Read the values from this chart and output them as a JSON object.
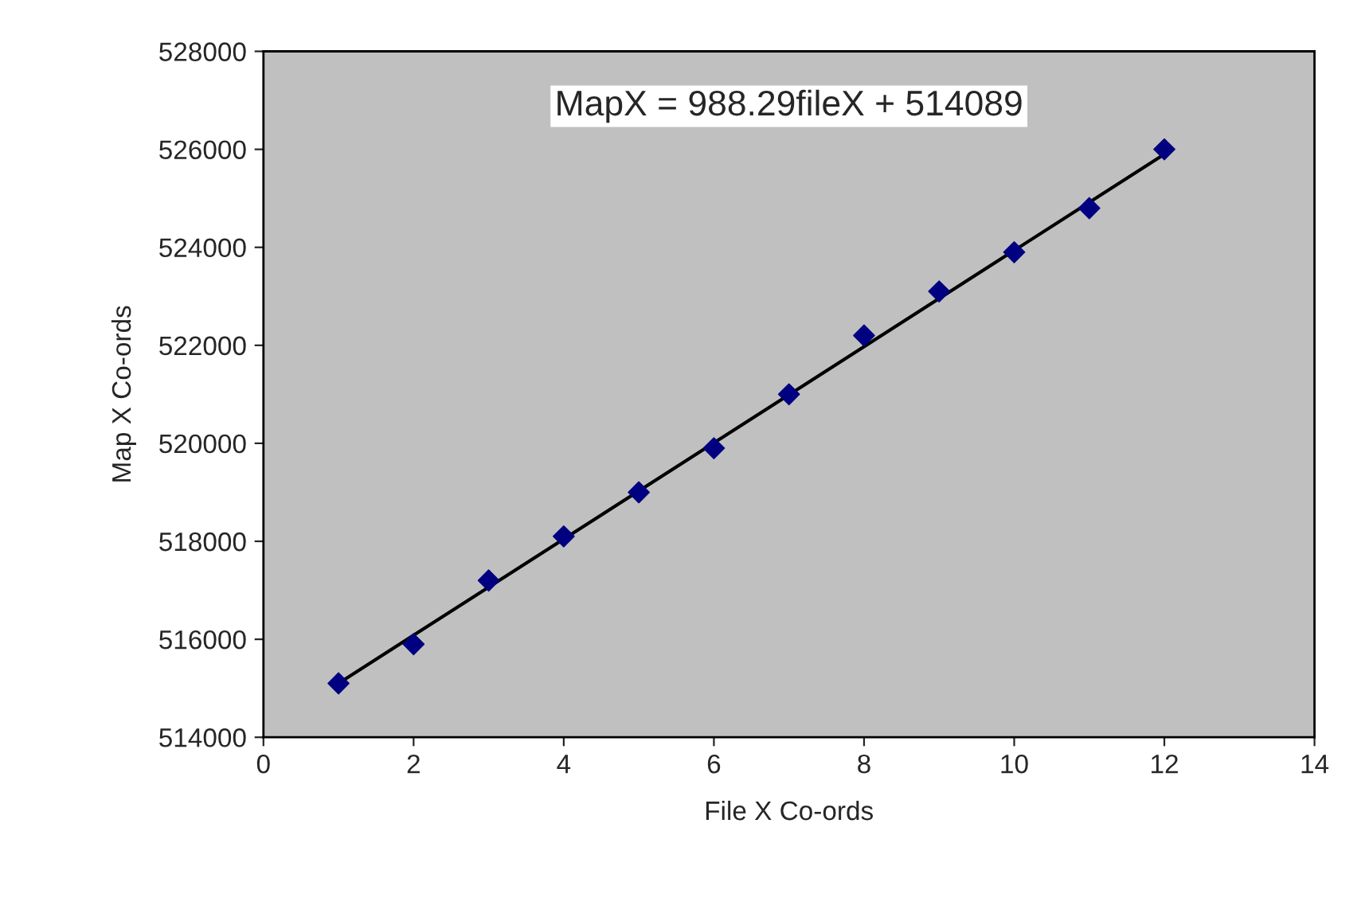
{
  "chart_data": {
    "type": "scatter",
    "xlabel": "File X Co-ords",
    "ylabel": "Map X Co-ords",
    "annotations": [
      "MapX = 988.29fileX + 514089"
    ],
    "series": [
      {
        "color": "#000080",
        "marker": "diamond",
        "x": [
          1,
          2,
          3,
          4,
          5,
          6,
          7,
          8,
          9,
          10,
          11,
          12
        ],
        "values": [
          515100,
          515900,
          517200,
          518100,
          519000,
          519900,
          521000,
          522200,
          523100,
          523900,
          524800,
          526000
        ]
      },
      {
        "type": "line",
        "color": "#000000",
        "x": [
          1,
          12
        ],
        "values": [
          515100,
          525900
        ]
      }
    ],
    "xlim": [
      0,
      14
    ],
    "xticks": [
      0,
      2,
      4,
      6,
      8,
      10,
      12,
      14
    ],
    "ylim": [
      514000,
      528000
    ],
    "yticks": [
      514000,
      516000,
      518000,
      520000,
      522000,
      524000,
      526000,
      528000
    ],
    "grid": false,
    "legend": false
  }
}
